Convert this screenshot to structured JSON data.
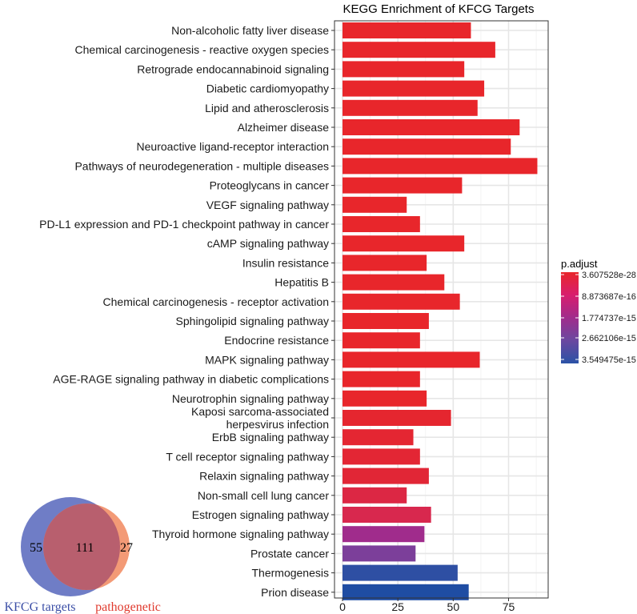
{
  "chart_data": {
    "type": "bar",
    "orientation": "horizontal",
    "title": "KEGG Enrichment of KFCG Targets",
    "xlabel": "",
    "ylabel": "",
    "xlim": [
      0,
      90
    ],
    "x_ticks": [
      0,
      25,
      50,
      75
    ],
    "grid": true,
    "categories": [
      "Non-alcoholic fatty liver disease",
      "Chemical carcinogenesis - reactive oxygen species",
      "Retrograde endocannabinoid signaling",
      "Diabetic cardiomyopathy",
      "Lipid and atherosclerosis",
      "Alzheimer disease",
      "Neuroactive ligand-receptor interaction",
      "Pathways of neurodegeneration - multiple diseases",
      "Proteoglycans in cancer",
      "VEGF signaling pathway",
      "PD-L1 expression and PD-1 checkpoint pathway in cancer",
      "cAMP signaling pathway",
      "Insulin resistance",
      "Hepatitis B",
      "Chemical carcinogenesis - receptor activation",
      "Sphingolipid signaling pathway",
      "Endocrine resistance",
      "MAPK signaling pathway",
      "AGE-RAGE signaling pathway in diabetic complications",
      "Neurotrophin signaling pathway",
      "Kaposi sarcoma-associated herpesvirus infection",
      "ErbB signaling pathway",
      "T cell receptor signaling pathway",
      "Relaxin signaling pathway",
      "Non-small cell lung cancer",
      "Estrogen signaling pathway",
      "Thyroid hormone signaling pathway",
      "Prostate cancer",
      "Thermogenesis",
      "Prion disease"
    ],
    "category_label_lines": {
      "20": [
        "Kaposi sarcoma-associated",
        "herpesvirus infection"
      ]
    },
    "values": [
      58,
      69,
      55,
      64,
      61,
      80,
      76,
      88,
      54,
      29,
      35,
      55,
      38,
      46,
      53,
      39,
      35,
      62,
      35,
      38,
      49,
      32,
      35,
      39,
      29,
      40,
      37,
      33,
      52,
      57
    ],
    "colors": [
      "#e8262b",
      "#e8262b",
      "#e8262b",
      "#e8262b",
      "#e8262b",
      "#e8262b",
      "#e8262b",
      "#e8262b",
      "#e8262b",
      "#e8262b",
      "#e8262b",
      "#e8262b",
      "#e8262b",
      "#e8262b",
      "#e8262b",
      "#e8262b",
      "#e8262b",
      "#e8262b",
      "#e8262b",
      "#e8262b",
      "#e5262f",
      "#e42632",
      "#e32634",
      "#e12636",
      "#dc2744",
      "#d8284e",
      "#a02c8c",
      "#7c3f9a",
      "#2e4fa3",
      "#1f4da3"
    ],
    "legend": {
      "title": "p.adjust",
      "position": "right",
      "labels": [
        "3.607528e-28",
        "8.873687e-16",
        "1.774737e-15",
        "2.662106e-15",
        "3.549475e-15"
      ],
      "gradient_colors": [
        "#e8262b",
        "#d81e6e",
        "#a02c8c",
        "#6a48a0",
        "#2a52a6"
      ]
    },
    "venn": {
      "left_label": "KFCG targets",
      "right_label": "pathogenetic",
      "left_only": "55",
      "intersection": "111",
      "right_only": "27",
      "left_color": "#6f7dc6",
      "right_color": "#f39a76",
      "overlap_color": "#b85f6e",
      "left_label_color": "#3b4ea6",
      "right_label_color": "#e03a2e"
    }
  }
}
